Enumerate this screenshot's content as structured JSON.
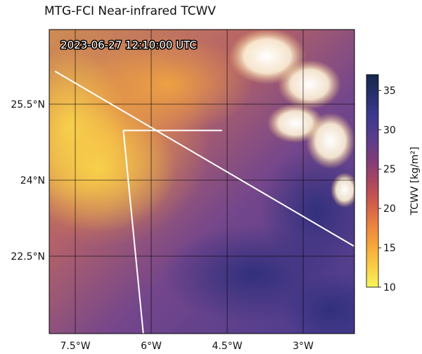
{
  "title": "MTG-FCI Near-infrared TCWV",
  "timestamp": "2023-06-27 12:10:00 UTC",
  "map": {
    "lon_ticks": [
      {
        "value": -7.5,
        "label": "7.5°W"
      },
      {
        "value": -6.0,
        "label": "6°W"
      },
      {
        "value": -4.5,
        "label": "4.5°W"
      },
      {
        "value": -3.0,
        "label": "3°W"
      }
    ],
    "lat_ticks": [
      {
        "value": 25.5,
        "label": "25.5°N"
      },
      {
        "value": 24.0,
        "label": "24°N"
      },
      {
        "value": 22.5,
        "label": "22.5°N"
      }
    ],
    "border_lines": [
      [
        [
          -7.9,
          26.15
        ],
        [
          -2.0,
          22.7
        ]
      ],
      [
        [
          -6.55,
          24.98
        ],
        [
          -4.6,
          24.98
        ]
      ],
      [
        [
          -6.55,
          24.98
        ],
        [
          -6.1,
          20.4
        ]
      ]
    ]
  },
  "colorbar": {
    "label": "TCWV [kg/m²]",
    "min": 10,
    "max": 37,
    "ticks": [
      10,
      15,
      20,
      25,
      30,
      35
    ],
    "colors": [
      "#f7f55a",
      "#f9cd45",
      "#f7a43c",
      "#e8803f",
      "#cf5a4d",
      "#a84660",
      "#7e3c7a",
      "#5a3c8c",
      "#3d3a8f",
      "#28306f",
      "#152848"
    ]
  }
}
